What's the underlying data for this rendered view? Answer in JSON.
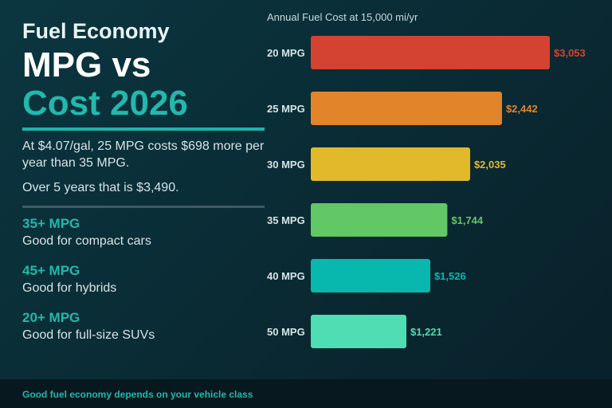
{
  "header": {
    "kicker": "Fuel Economy",
    "title_line1": "MPG vs",
    "title_line2": "Cost 2026",
    "desc": "At $4.07/gal, 25 MPG costs $698 more per year than 35 MPG.",
    "desc2": "Over 5 years that is $3,490."
  },
  "tiers": [
    {
      "head": "35+ MPG",
      "sub": "Good for compact cars"
    },
    {
      "head": "45+ MPG",
      "sub": "Good for hybrids"
    },
    {
      "head": "20+ MPG",
      "sub": "Good for full-size SUVs"
    }
  ],
  "footer": {
    "text": "Good fuel economy depends on your vehicle class"
  },
  "colors": {
    "accent": "#22b8ac"
  },
  "chart_data": {
    "type": "bar",
    "orientation": "horizontal",
    "title": "Annual Fuel Cost at 15,000 mi/yr",
    "categories": [
      "20 MPG",
      "25 MPG",
      "30 MPG",
      "35 MPG",
      "40 MPG",
      "50 MPG"
    ],
    "values": [
      3053,
      2442,
      2035,
      1744,
      1526,
      1221
    ],
    "value_labels": [
      "$3,053",
      "$2,442",
      "$2,035",
      "$1,744",
      "$1,526",
      "$1,221"
    ],
    "colors": [
      "#d44232",
      "#e28429",
      "#e3b92c",
      "#62c765",
      "#08b8ae",
      "#4fddb4"
    ],
    "xlim": [
      0,
      3053
    ],
    "grid": false,
    "legend": "none"
  }
}
